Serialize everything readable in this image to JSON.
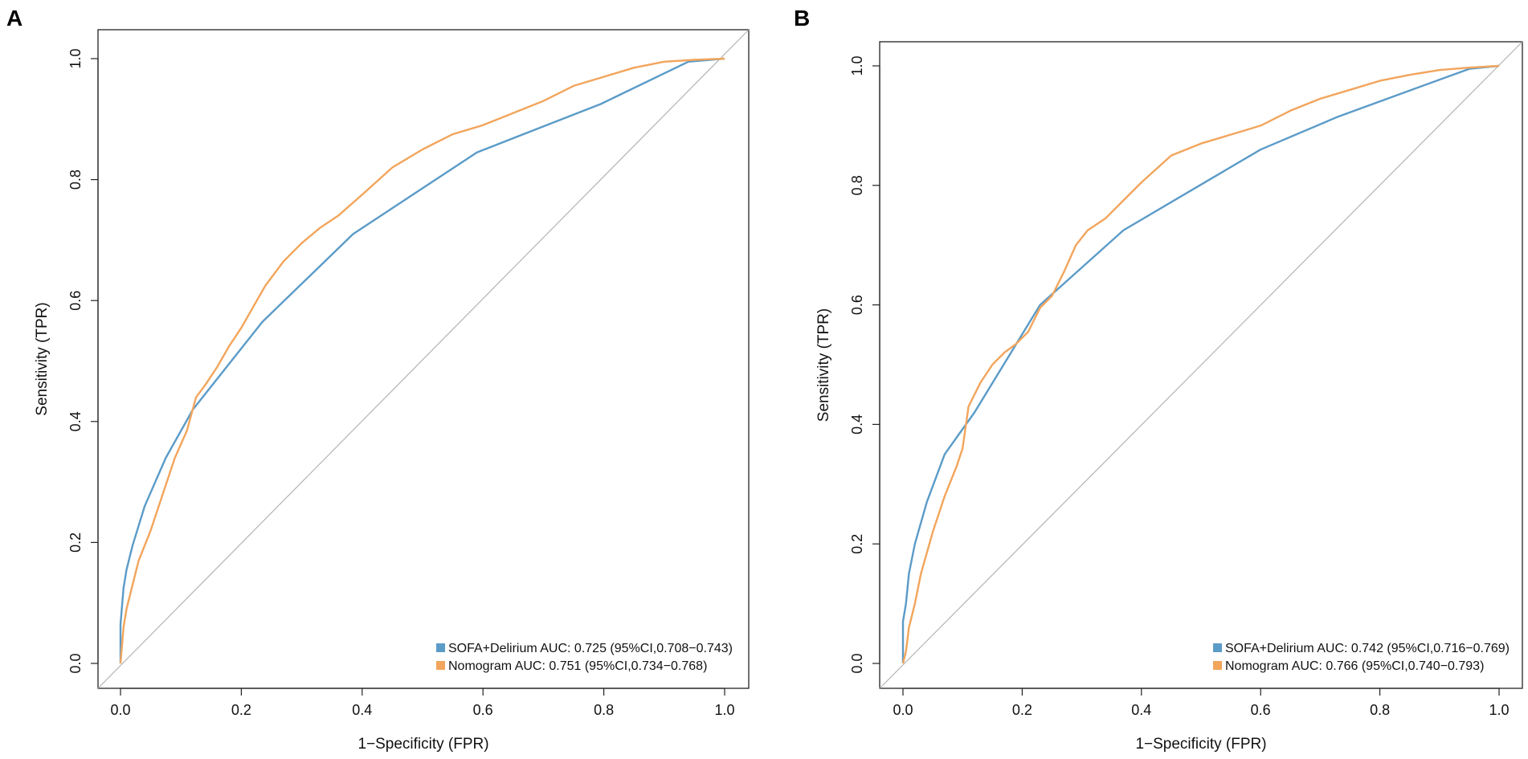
{
  "chart_data": [
    {
      "type": "line",
      "panel_label": "A",
      "xlabel": "1−Specificity (FPR)",
      "ylabel": "Sensitivity (TPR)",
      "xlim": [
        0,
        1
      ],
      "ylim": [
        0,
        1
      ],
      "xticks": [
        "0.0",
        "0.2",
        "0.4",
        "0.6",
        "0.8",
        "1.0"
      ],
      "yticks": [
        "0.0",
        "0.2",
        "0.4",
        "0.6",
        "0.8",
        "1.0"
      ],
      "grid": false,
      "legend_position": "bottom-right",
      "diagonal_color": "#b3b3b3",
      "series": [
        {
          "name": "SOFA+Delirium",
          "legend": "SOFA+Delirium AUC: 0.725 (95%CI,0.708−0.743)",
          "color": "#5b9bc8",
          "x": [
            0,
            0,
            0.005,
            0.01,
            0.02,
            0.04,
            0.075,
            0.12,
            0.235,
            0.385,
            0.59,
            0.795,
            0.94,
            1.0
          ],
          "y": [
            0,
            0.065,
            0.125,
            0.155,
            0.195,
            0.26,
            0.34,
            0.42,
            0.565,
            0.71,
            0.845,
            0.925,
            0.995,
            1.0
          ]
        },
        {
          "name": "Nomogram",
          "legend": "Nomogram AUC: 0.751 (95%CI,0.734−0.768)",
          "color": "#f2a55c",
          "x": [
            0,
            0.005,
            0.01,
            0.02,
            0.03,
            0.05,
            0.07,
            0.09,
            0.11,
            0.125,
            0.14,
            0.16,
            0.18,
            0.2,
            0.22,
            0.24,
            0.27,
            0.3,
            0.33,
            0.36,
            0.4,
            0.45,
            0.5,
            0.55,
            0.6,
            0.65,
            0.7,
            0.75,
            0.8,
            0.85,
            0.9,
            0.95,
            1.0
          ],
          "y": [
            0,
            0.06,
            0.09,
            0.13,
            0.17,
            0.22,
            0.28,
            0.34,
            0.385,
            0.44,
            0.46,
            0.49,
            0.525,
            0.555,
            0.59,
            0.625,
            0.665,
            0.695,
            0.72,
            0.74,
            0.775,
            0.82,
            0.85,
            0.875,
            0.89,
            0.91,
            0.93,
            0.955,
            0.97,
            0.985,
            0.995,
            0.998,
            1.0
          ]
        }
      ]
    },
    {
      "type": "line",
      "panel_label": "B",
      "xlabel": "1−Specificity (FPR)",
      "ylabel": "Sensitivity (TPR)",
      "xlim": [
        0,
        1
      ],
      "ylim": [
        0,
        1
      ],
      "xticks": [
        "0.0",
        "0.2",
        "0.4",
        "0.6",
        "0.8",
        "1.0"
      ],
      "yticks": [
        "0.0",
        "0.2",
        "0.4",
        "0.6",
        "0.8",
        "1.0"
      ],
      "grid": false,
      "legend_position": "bottom-right",
      "diagonal_color": "#b3b3b3",
      "series": [
        {
          "name": "SOFA+Delirium",
          "legend": "SOFA+Delirium AUC: 0.742 (95%CI,0.716−0.769)",
          "color": "#5b9bc8",
          "x": [
            0,
            0,
            0.005,
            0.01,
            0.02,
            0.04,
            0.07,
            0.12,
            0.23,
            0.37,
            0.6,
            0.73,
            0.95,
            1.0
          ],
          "y": [
            0,
            0.07,
            0.1,
            0.15,
            0.2,
            0.27,
            0.35,
            0.42,
            0.6,
            0.725,
            0.86,
            0.915,
            0.995,
            1.0
          ]
        },
        {
          "name": "Nomogram",
          "legend": "Nomogram AUC: 0.766 (95%CI,0.740−0.793)",
          "color": "#f2a55c",
          "x": [
            0,
            0.005,
            0.01,
            0.02,
            0.03,
            0.05,
            0.07,
            0.09,
            0.1,
            0.11,
            0.13,
            0.15,
            0.17,
            0.19,
            0.21,
            0.23,
            0.25,
            0.27,
            0.29,
            0.31,
            0.34,
            0.37,
            0.4,
            0.45,
            0.5,
            0.55,
            0.6,
            0.65,
            0.7,
            0.75,
            0.8,
            0.85,
            0.9,
            0.95,
            1.0
          ],
          "y": [
            0,
            0.02,
            0.06,
            0.1,
            0.15,
            0.22,
            0.28,
            0.33,
            0.36,
            0.43,
            0.47,
            0.5,
            0.52,
            0.535,
            0.555,
            0.595,
            0.615,
            0.655,
            0.7,
            0.725,
            0.745,
            0.775,
            0.805,
            0.85,
            0.87,
            0.885,
            0.9,
            0.925,
            0.945,
            0.96,
            0.975,
            0.985,
            0.993,
            0.997,
            1.0
          ]
        }
      ]
    }
  ]
}
